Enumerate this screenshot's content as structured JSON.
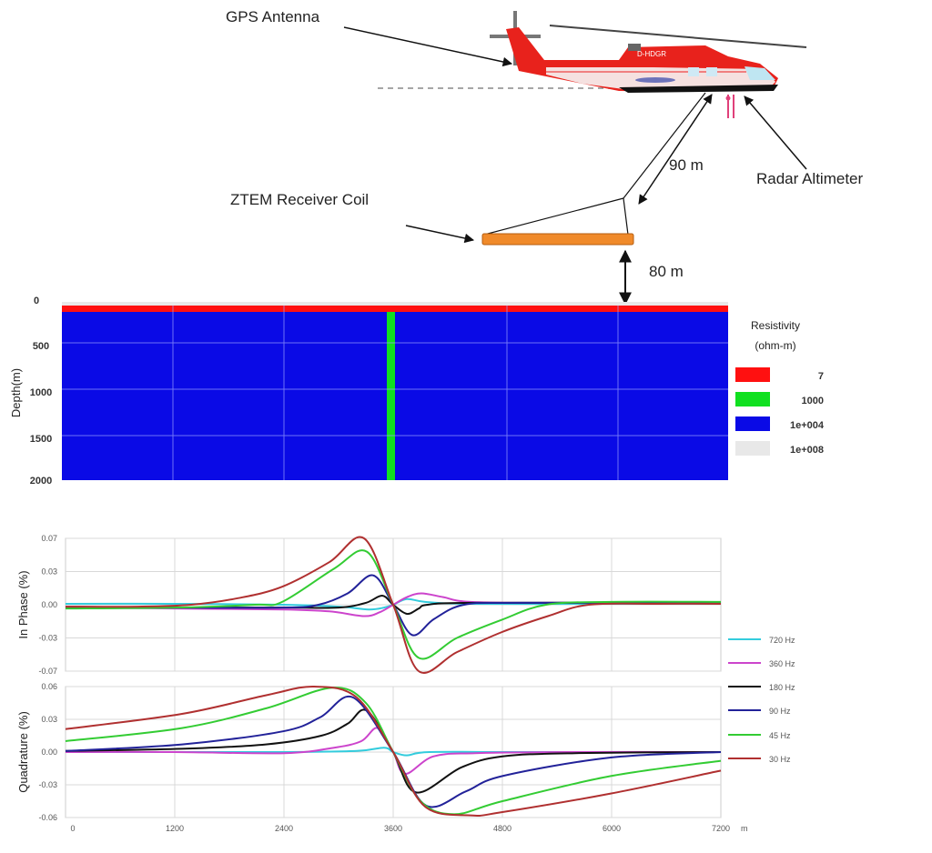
{
  "survey_diagram": {
    "gps_label": "GPS Antenna",
    "radar_label": "Radar Altimeter",
    "coil_label": "ZTEM Receiver Coil",
    "tow_length": "90 m",
    "coil_height": "80 m",
    "helicopter_registration": "D-HDGR",
    "colors": {
      "helicopter": "#e8221c",
      "coil": "#f08a2a",
      "altimeter": "#e0407a"
    }
  },
  "resistivity_section": {
    "ylabel": "Depth(m)",
    "depth_ticks": [
      "0",
      "500",
      "1000",
      "1500",
      "2000"
    ],
    "legend_title": "Resistivity",
    "legend_units": "(ohm-m)",
    "legend": [
      {
        "label": "7",
        "color": "#ff1010"
      },
      {
        "label": "1000",
        "color": "#10e020"
      },
      {
        "label": "1e+004",
        "color": "#0a0ae6"
      },
      {
        "label": "1e+008",
        "color": "#e8e8e8"
      }
    ]
  },
  "chart_data": [
    {
      "type": "line",
      "ylabel": "In Phase (%)",
      "ylim": [
        -0.07,
        0.07
      ],
      "yticks": [
        0.07,
        0.035,
        0,
        -0.035,
        -0.07
      ],
      "ytick_labels": [
        "0.07",
        "0.03",
        "0.00",
        "-0.03",
        "-0.07"
      ],
      "xlim": [
        0,
        7200
      ],
      "grid": true,
      "series": [
        {
          "name": "720 Hz",
          "color": "#33ccdd",
          "x": [
            0,
            1200,
            2400,
            3000,
            3330,
            3500,
            3600,
            3750,
            3950,
            4400,
            6000,
            7200
          ],
          "y": [
            0.001,
            0.001,
            0.0,
            -0.002,
            -0.005,
            -0.003,
            0.0,
            0.006,
            0.003,
            0.001,
            0.001,
            0.001
          ]
        },
        {
          "name": "360 Hz",
          "color": "#cc44cc",
          "x": [
            0,
            1200,
            2400,
            2900,
            3280,
            3450,
            3600,
            3750,
            3910,
            4150,
            4450,
            5400,
            7200
          ],
          "y": [
            -0.003,
            -0.004,
            -0.005,
            -0.007,
            -0.012,
            -0.008,
            0.0,
            0.008,
            0.012,
            0.008,
            0.003,
            0.002,
            0.002
          ]
        },
        {
          "name": "180 Hz",
          "color": "#111111",
          "x": [
            0,
            1200,
            2400,
            3000,
            3300,
            3480,
            3600,
            3750,
            3880,
            3980,
            4500,
            7200
          ],
          "y": [
            -0.003,
            -0.003,
            -0.003,
            -0.003,
            0.002,
            0.0096,
            0.0,
            -0.0096,
            -0.004,
            0.0,
            0.002,
            0.002
          ]
        },
        {
          "name": "90 Hz",
          "color": "#222299",
          "x": [
            0,
            1200,
            2400,
            2780,
            3100,
            3380,
            3600,
            3810,
            4050,
            4380,
            5000,
            7200
          ],
          "y": [
            -0.002,
            -0.003,
            -0.003,
            0.0,
            0.012,
            0.031,
            0.0,
            -0.032,
            -0.015,
            0.0,
            0.002,
            0.002
          ]
        },
        {
          "name": "45 Hz",
          "color": "#33cc33",
          "x": [
            0,
            1200,
            2080,
            2380,
            2950,
            3310,
            3600,
            3880,
            4300,
            4790,
            5280,
            6000,
            7200
          ],
          "y": [
            -0.004,
            -0.003,
            0.0,
            0.003,
            0.038,
            0.056,
            0.0,
            -0.056,
            -0.035,
            -0.016,
            0.0,
            0.003,
            0.003
          ]
        },
        {
          "name": "30 Hz",
          "color": "#b03030",
          "x": [
            0,
            800,
            1380,
            1900,
            2380,
            2900,
            3280,
            3600,
            3880,
            4300,
            4790,
            5300,
            5750,
            6500,
            7200
          ],
          "y": [
            -0.002,
            -0.002,
            0.0,
            0.007,
            0.019,
            0.045,
            0.07,
            0.0,
            -0.07,
            -0.05,
            -0.029,
            -0.012,
            0.0,
            0.001,
            0.001
          ]
        }
      ]
    },
    {
      "type": "line",
      "ylabel": "Quadrature (%)",
      "ylim": [
        -0.06,
        0.06
      ],
      "yticks": [
        0.06,
        0.03,
        0,
        -0.03,
        -0.06
      ],
      "ytick_labels": [
        "0.06",
        "0.03",
        "0.00",
        "-0.03",
        "-0.06"
      ],
      "xlim": [
        0,
        7200
      ],
      "xticks": [
        0,
        1200,
        2400,
        3600,
        4800,
        6000,
        7200
      ],
      "xtick_labels": [
        "0",
        "1200",
        "2400",
        "3600",
        "4800",
        "6000",
        "7200"
      ],
      "xunit": "m",
      "grid": true,
      "series": [
        {
          "name": "720 Hz",
          "color": "#33ccdd",
          "x": [
            0,
            1200,
            2400,
            3200,
            3500,
            3600,
            3750,
            4000,
            5000,
            7200
          ],
          "y": [
            0.0,
            0.0,
            0.0,
            0.001,
            0.004,
            0.0,
            -0.003,
            0.0,
            0.0,
            0.0
          ]
        },
        {
          "name": "360 Hz",
          "color": "#cc44cc",
          "x": [
            0,
            1200,
            2400,
            2950,
            3250,
            3430,
            3600,
            3730,
            4040,
            4500,
            5500,
            7200
          ],
          "y": [
            0.0,
            0.0,
            -0.001,
            0.004,
            0.01,
            0.022,
            0.0,
            -0.02,
            -0.004,
            -0.001,
            0.0,
            0.0
          ]
        },
        {
          "name": "180 Hz",
          "color": "#111111",
          "x": [
            0,
            1280,
            2200,
            2810,
            3100,
            3310,
            3600,
            3850,
            4350,
            4800,
            5600,
            7200
          ],
          "y": [
            0.001,
            0.003,
            0.007,
            0.015,
            0.026,
            0.038,
            0.0,
            -0.037,
            -0.014,
            -0.004,
            -0.001,
            0.0
          ]
        },
        {
          "name": "90 Hz",
          "color": "#222299",
          "x": [
            0,
            1280,
            2390,
            2800,
            3160,
            3600,
            3960,
            4400,
            4800,
            5990,
            7200
          ],
          "y": [
            0.001,
            0.007,
            0.019,
            0.032,
            0.05,
            0.0,
            -0.049,
            -0.036,
            -0.022,
            -0.005,
            0.0
          ]
        },
        {
          "name": "45 Hz",
          "color": "#33cc33",
          "x": [
            0,
            1280,
            2200,
            2930,
            3300,
            3600,
            3900,
            4270,
            4800,
            5990,
            7200
          ],
          "y": [
            0.01,
            0.022,
            0.04,
            0.059,
            0.045,
            0.0,
            -0.045,
            -0.057,
            -0.045,
            -0.022,
            -0.008
          ]
        },
        {
          "name": "30 Hz",
          "color": "#b03030",
          "x": [
            0,
            1280,
            2200,
            2730,
            3200,
            3600,
            3950,
            4450,
            4800,
            5990,
            7200
          ],
          "y": [
            0.021,
            0.035,
            0.052,
            0.06,
            0.05,
            0.0,
            -0.05,
            -0.058,
            -0.055,
            -0.038,
            -0.017
          ]
        }
      ]
    }
  ]
}
